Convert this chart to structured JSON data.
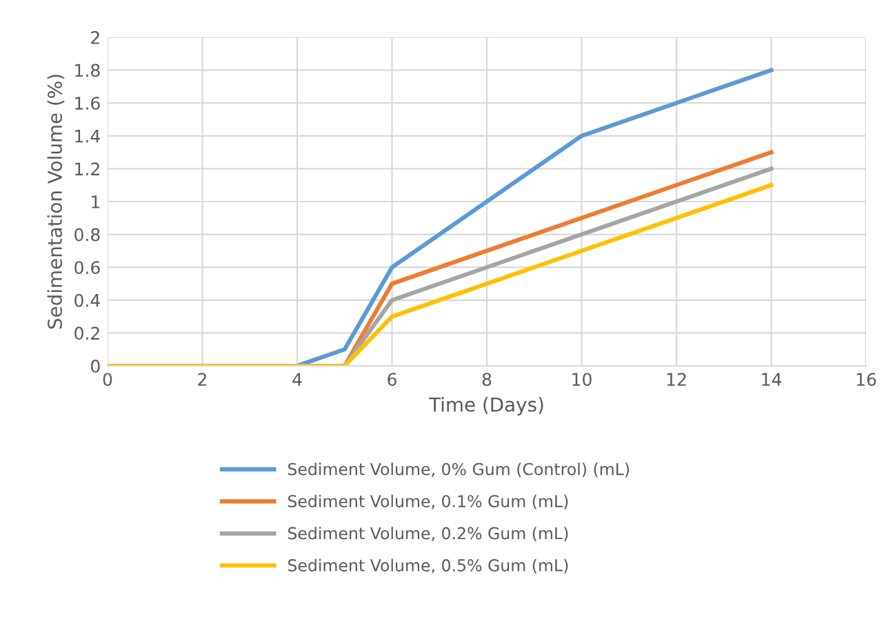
{
  "chart_data": {
    "type": "line",
    "xlabel": "Time (Days)",
    "ylabel": "Sedimentation Volume (%)",
    "xlim": [
      0,
      16
    ],
    "xticks": [
      0,
      2,
      4,
      6,
      8,
      10,
      12,
      14,
      16
    ],
    "ylim": [
      0,
      2
    ],
    "yticks": [
      0,
      0.2,
      0.4,
      0.6,
      0.8,
      1,
      1.2,
      1.4,
      1.6,
      1.8,
      2
    ],
    "grid": true,
    "legend": "bottom",
    "marker": "none",
    "line_style": "solid",
    "series": [
      {
        "name": "Sediment Volume, 0% Gum (Control) (mL)",
        "color": "#5b9bd5",
        "x": [
          0,
          4,
          5,
          6,
          10,
          13,
          14
        ],
        "values": [
          0,
          0,
          0.1,
          0.6,
          1.4,
          1.7,
          1.8
        ]
      },
      {
        "name": "Sediment Volume, 0.1% Gum (mL)",
        "color": "#ed7d31",
        "x": [
          0,
          5,
          6,
          14
        ],
        "values": [
          0,
          0,
          0.5,
          1.3
        ]
      },
      {
        "name": "Sediment Volume, 0.2% Gum (mL)",
        "color": "#a5a5a5",
        "x": [
          0,
          5,
          6,
          14
        ],
        "values": [
          0,
          0,
          0.4,
          1.2
        ]
      },
      {
        "name": "Sediment Volume, 0.5% Gum (mL)",
        "color": "#ffc000",
        "x": [
          0,
          5,
          6,
          14
        ],
        "values": [
          0,
          0,
          0.3,
          1.1
        ]
      }
    ]
  }
}
